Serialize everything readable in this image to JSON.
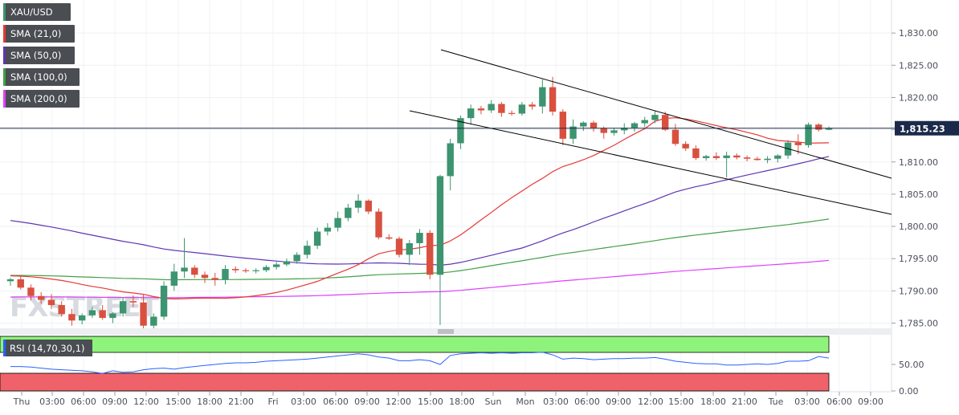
{
  "legend": {
    "symbol": "XAU/USD",
    "indicators": [
      {
        "label": "SMA (21,0)",
        "color": "#e53935"
      },
      {
        "label": "SMA (50,0)",
        "color": "#5e35b1"
      },
      {
        "label": "SMA (100,0)",
        "color": "#43a047"
      },
      {
        "label": "SMA (200,0)",
        "color": "#e040fb"
      }
    ]
  },
  "watermark": "FXSTREET",
  "current_price_label": "1,815.23",
  "colors": {
    "up": "#3d9470",
    "down": "#d9503f",
    "price_line": "#1b2a4a",
    "rsi_line": "#2962ff",
    "rsi_overbought_zone": "#8ef37a",
    "rsi_oversold_zone": "#f0626a",
    "trendline": "#000000"
  },
  "chart_data": [
    {
      "type": "candlestick",
      "title": "",
      "y_ticks": [
        "1,785.00",
        "1,790.00",
        "1,795.00",
        "1,800.00",
        "1,805.00",
        "1,810.00",
        "1,815.00",
        "1,820.00",
        "1,825.00",
        "1,830.00"
      ],
      "ylim": [
        1783,
        1833
      ],
      "x_ticks": [
        "Thu",
        "03:00",
        "06:00",
        "09:00",
        "12:00",
        "15:00",
        "18:00",
        "21:00",
        "Fri",
        "03:00",
        "06:00",
        "09:00",
        "12:00",
        "15:00",
        "18:00",
        "Sun",
        "Mon",
        "03:00",
        "06:00",
        "09:00",
        "12:00",
        "15:00",
        "18:00",
        "21:00",
        "Tue",
        "03:00",
        "06:00",
        "09:00"
      ],
      "current_price": 1815.23,
      "candles": [
        [
          1791.5,
          1792.0,
          1790.8,
          1791.8
        ],
        [
          1791.8,
          1792.3,
          1790.2,
          1790.5
        ],
        [
          1790.5,
          1791.0,
          1788.5,
          1789.2
        ],
        [
          1789.2,
          1789.8,
          1788.0,
          1788.6
        ],
        [
          1788.6,
          1789.5,
          1787.2,
          1787.8
        ],
        [
          1787.8,
          1788.4,
          1786.0,
          1786.4
        ],
        [
          1786.4,
          1787.2,
          1784.6,
          1785.4
        ],
        [
          1785.4,
          1786.5,
          1784.8,
          1786.2
        ],
        [
          1786.2,
          1787.5,
          1785.8,
          1787.0
        ],
        [
          1787.0,
          1787.8,
          1785.5,
          1785.8
        ],
        [
          1785.8,
          1786.7,
          1785.0,
          1786.5
        ],
        [
          1786.5,
          1789.0,
          1786.0,
          1788.4
        ],
        [
          1788.4,
          1789.3,
          1787.5,
          1788.2
        ],
        [
          1788.2,
          1789.5,
          1784.2,
          1784.6
        ],
        [
          1784.6,
          1786.5,
          1784.2,
          1786.0
        ],
        [
          1786.0,
          1791.5,
          1785.5,
          1790.8
        ],
        [
          1790.8,
          1794.2,
          1790.0,
          1793.0
        ],
        [
          1793.0,
          1798.2,
          1792.0,
          1793.6
        ],
        [
          1793.6,
          1794.0,
          1792.0,
          1792.5
        ],
        [
          1792.5,
          1793.0,
          1791.2,
          1792.0
        ],
        [
          1792.0,
          1792.8,
          1790.8,
          1791.7
        ],
        [
          1791.7,
          1794.0,
          1791.0,
          1793.4
        ],
        [
          1793.4,
          1793.8,
          1792.8,
          1793.2
        ],
        [
          1793.2,
          1793.5,
          1792.8,
          1793.1
        ],
        [
          1793.1,
          1793.5,
          1792.7,
          1793.2
        ],
        [
          1793.2,
          1794.0,
          1792.9,
          1793.7
        ],
        [
          1793.7,
          1794.5,
          1793.3,
          1794.1
        ],
        [
          1794.1,
          1795.0,
          1793.8,
          1794.6
        ],
        [
          1794.6,
          1796.0,
          1794.2,
          1795.6
        ],
        [
          1795.6,
          1797.8,
          1795.0,
          1797.0
        ],
        [
          1797.0,
          1799.8,
          1796.5,
          1799.2
        ],
        [
          1799.2,
          1800.5,
          1798.6,
          1799.8
        ],
        [
          1799.8,
          1802.3,
          1799.2,
          1801.3
        ],
        [
          1801.3,
          1803.5,
          1800.8,
          1802.9
        ],
        [
          1802.9,
          1805.0,
          1802.1,
          1804.0
        ],
        [
          1804.0,
          1804.2,
          1801.9,
          1802.3
        ],
        [
          1802.3,
          1802.8,
          1798.0,
          1798.3
        ],
        [
          1798.3,
          1798.8,
          1797.9,
          1798.1
        ],
        [
          1798.1,
          1798.4,
          1795.2,
          1795.6
        ],
        [
          1795.6,
          1797.9,
          1794.0,
          1797.4
        ],
        [
          1797.4,
          1799.6,
          1795.6,
          1799.0
        ],
        [
          1799.0,
          1799.4,
          1791.8,
          1792.5
        ],
        [
          1792.5,
          1808.0,
          1784.7,
          1807.8
        ],
        [
          1807.8,
          1813.6,
          1805.6,
          1812.9
        ],
        [
          1812.9,
          1817.2,
          1812.0,
          1816.8
        ],
        [
          1816.8,
          1818.9,
          1815.8,
          1818.3
        ],
        [
          1818.3,
          1818.7,
          1817.4,
          1818.0
        ],
        [
          1818.0,
          1819.6,
          1817.6,
          1819.0
        ],
        [
          1819.0,
          1819.3,
          1817.0,
          1817.6
        ],
        [
          1817.6,
          1818.0,
          1817.2,
          1817.5
        ],
        [
          1817.5,
          1819.3,
          1817.2,
          1818.9
        ],
        [
          1818.9,
          1819.3,
          1818.1,
          1818.6
        ],
        [
          1818.6,
          1822.8,
          1817.5,
          1821.6
        ],
        [
          1821.6,
          1823.2,
          1817.2,
          1817.8
        ],
        [
          1817.8,
          1818.2,
          1812.6,
          1813.6
        ],
        [
          1813.6,
          1816.6,
          1812.8,
          1815.5
        ],
        [
          1815.5,
          1816.3,
          1814.8,
          1816.1
        ],
        [
          1816.1,
          1816.4,
          1814.7,
          1815.2
        ],
        [
          1815.2,
          1815.5,
          1813.6,
          1814.5
        ],
        [
          1814.5,
          1815.3,
          1814.1,
          1814.9
        ],
        [
          1814.9,
          1816.0,
          1814.3,
          1815.3
        ],
        [
          1815.3,
          1816.2,
          1814.7,
          1816.0
        ],
        [
          1816.0,
          1817.0,
          1815.4,
          1816.5
        ],
        [
          1816.5,
          1818.0,
          1816.0,
          1817.3
        ],
        [
          1817.3,
          1817.8,
          1814.8,
          1815.0
        ],
        [
          1815.0,
          1815.9,
          1812.5,
          1812.8
        ],
        [
          1812.8,
          1813.2,
          1811.7,
          1812.1
        ],
        [
          1812.1,
          1812.6,
          1810.3,
          1810.6
        ],
        [
          1810.6,
          1811.1,
          1810.2,
          1810.9
        ],
        [
          1810.9,
          1811.5,
          1810.3,
          1810.6
        ],
        [
          1810.6,
          1811.6,
          1807.6,
          1811.0
        ],
        [
          1811.0,
          1811.3,
          1810.4,
          1810.7
        ],
        [
          1810.7,
          1811.0,
          1810.1,
          1810.5
        ],
        [
          1810.5,
          1810.8,
          1810.2,
          1810.3
        ],
        [
          1810.3,
          1810.9,
          1809.8,
          1810.5
        ],
        [
          1810.5,
          1811.2,
          1809.9,
          1811.0
        ],
        [
          1811.0,
          1813.4,
          1810.5,
          1813.0
        ],
        [
          1813.0,
          1814.3,
          1811.2,
          1812.6
        ],
        [
          1812.6,
          1816.1,
          1812.2,
          1815.8
        ],
        [
          1815.8,
          1816.0,
          1814.7,
          1815.0
        ],
        [
          1815.0,
          1815.5,
          1814.9,
          1815.23
        ]
      ]
    },
    {
      "type": "line",
      "title": "",
      "legend_label": "RSI (14,70,30,1)",
      "y_ticks": [
        "0.00",
        "50.00"
      ],
      "ylim": [
        0,
        100
      ],
      "values": [
        46,
        46,
        45,
        43,
        41,
        40,
        39,
        38,
        36,
        33,
        38,
        35,
        36,
        40,
        42,
        43,
        41,
        44,
        46,
        48,
        50,
        52,
        53,
        53,
        54,
        56,
        57,
        58,
        59,
        60,
        62,
        64,
        66,
        68,
        70,
        68,
        64,
        62,
        57,
        57,
        59,
        57,
        50,
        67,
        70,
        71,
        72,
        71,
        72,
        71,
        72,
        72,
        73,
        68,
        60,
        62,
        61,
        59,
        60,
        61,
        61,
        62,
        62,
        63,
        60,
        56,
        54,
        52,
        51,
        51,
        49,
        49,
        50,
        51,
        50,
        52,
        56,
        56,
        57,
        65,
        62
      ]
    }
  ]
}
